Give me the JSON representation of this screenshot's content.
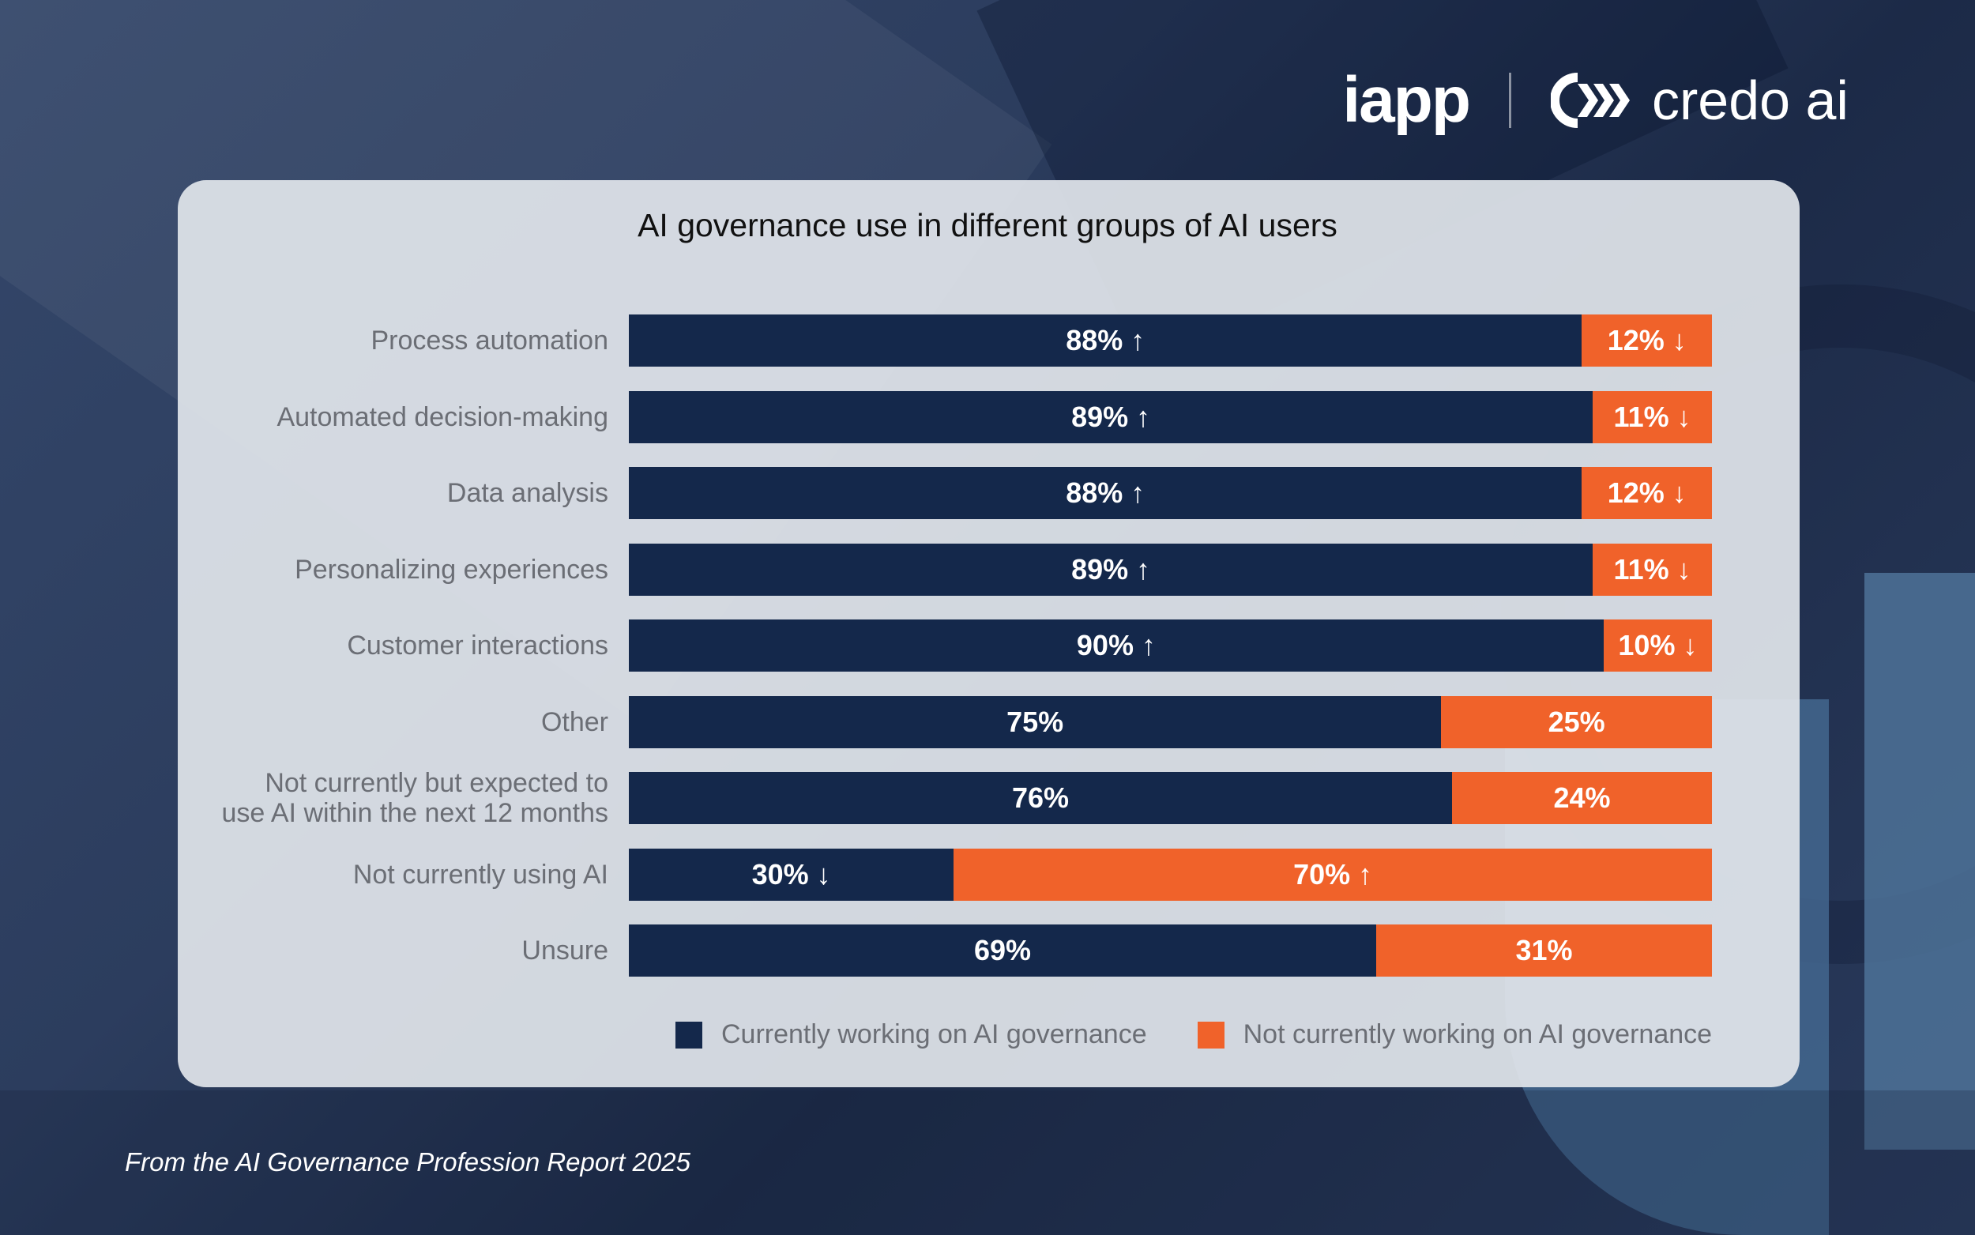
{
  "brand": {
    "logo_left": "iapp",
    "logo_right": "credo ai",
    "navy": "#14284b",
    "orange": "#f0622a"
  },
  "footer": "From the AI Governance Profession Report 2025",
  "chart_data": {
    "type": "bar",
    "orientation": "horizontal",
    "stacked": true,
    "normalized": true,
    "title": "AI governance use in different groups of AI users",
    "xlabel": "",
    "ylabel": "",
    "xlim": [
      0,
      100
    ],
    "grid": false,
    "legend_position": "bottom",
    "categories": [
      "Process automation",
      "Automated decision-making",
      "Data analysis",
      "Personalizing experiences",
      "Customer interactions",
      "Other",
      "Not currently but expected to use AI within the next 12 months",
      "Not currently using AI",
      "Unsure"
    ],
    "category_lines": [
      [
        "Process automation"
      ],
      [
        "Automated decision-making"
      ],
      [
        "Data analysis"
      ],
      [
        "Personalizing experiences"
      ],
      [
        "Customer interactions"
      ],
      [
        "Other"
      ],
      [
        "Not currently but expected to",
        "use AI within the next 12 months"
      ],
      [
        "Not currently using AI"
      ],
      [
        "Unsure"
      ]
    ],
    "series": [
      {
        "name": "Currently working on AI governance",
        "color": "#14284b",
        "values": [
          88,
          89,
          88,
          89,
          90,
          75,
          76,
          30,
          69
        ],
        "labels": [
          "88% ↑",
          "89% ↑",
          "88% ↑",
          "89% ↑",
          "90% ↑",
          "75%",
          "76%",
          "30% ↓",
          "69%"
        ]
      },
      {
        "name": "Not currently working on AI governance",
        "color": "#f0622a",
        "values": [
          12,
          11,
          12,
          11,
          10,
          25,
          24,
          70,
          31
        ],
        "labels": [
          "12% ↓",
          "11% ↓",
          "12% ↓",
          "11% ↓",
          "10% ↓",
          "25%",
          "24%",
          "70% ↑",
          "31%"
        ]
      }
    ]
  }
}
